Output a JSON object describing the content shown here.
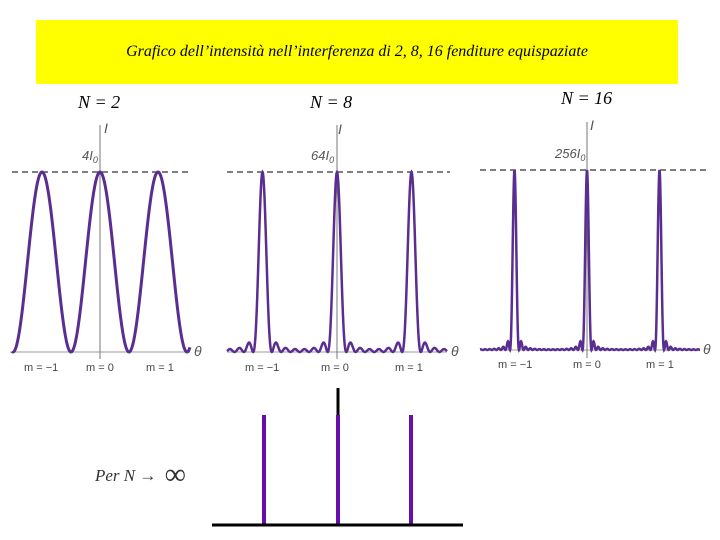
{
  "title": "Grafico dell’intensità nell’interferenza di 2, 8, 16 fenditure equispaziate",
  "panels": [
    {
      "n_label": "N = 2",
      "n": 2,
      "peak_label": "4I0",
      "peak_main": "4I",
      "peak_sub": "0",
      "axis_y": "I",
      "axis_x": "θ",
      "m_labels": [
        "m = −1",
        "m = 0",
        "m = 1"
      ]
    },
    {
      "n_label": "N = 8",
      "n": 8,
      "peak_label": "64I0",
      "peak_main": "64I",
      "peak_sub": "0",
      "axis_y": "I",
      "axis_x": "θ",
      "m_labels": [
        "m = −1",
        "m = 0",
        "m = 1"
      ]
    },
    {
      "n_label": "N = 16",
      "n": 16,
      "peak_label": "256I0",
      "peak_main": "256I",
      "peak_sub": "0",
      "axis_y": "I",
      "axis_x": "θ",
      "m_labels": [
        "m = −1",
        "m = 0",
        "m = 1"
      ]
    }
  ],
  "limit": {
    "prefix": "Per N",
    "arrow": "→",
    "symbol": "∞"
  },
  "colors": {
    "title_bg": "#ffff00",
    "curve": "#5a2d91",
    "limit_lines": "#6a0dad",
    "dash": "#555555"
  }
}
